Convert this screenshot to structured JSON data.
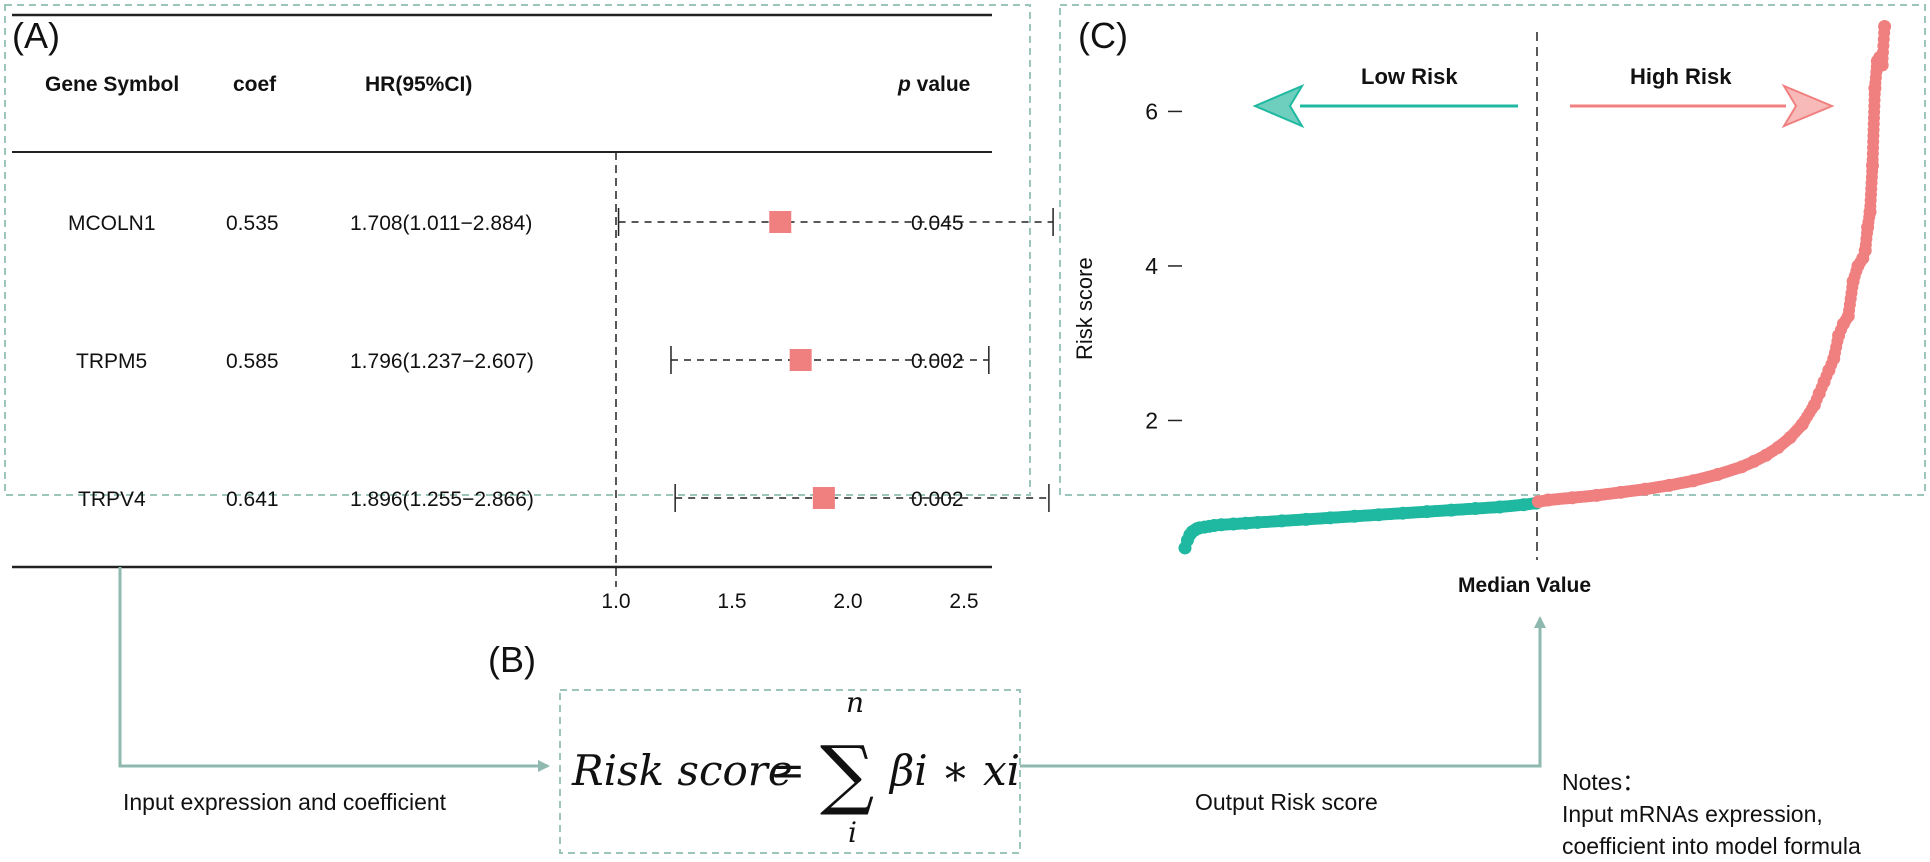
{
  "panel_a": {
    "label": "(A)",
    "headers": {
      "gene": "Gene Symbol",
      "coef": "coef",
      "hr": "HR(95%CI)",
      "p_prefix": "p",
      "p_suffix": " value"
    },
    "rows": [
      {
        "gene": "MCOLN1",
        "coef": "0.535",
        "hr_text": "1.708(1.011−2.884)",
        "p": "0.045",
        "hr": 1.708,
        "lo": 1.011,
        "hi": 2.884
      },
      {
        "gene": "TRPM5",
        "coef": "0.585",
        "hr_text": "1.796(1.237−2.607)",
        "p": "0.002",
        "hr": 1.796,
        "lo": 1.237,
        "hi": 2.607
      },
      {
        "gene": "TRPV4",
        "coef": "0.641",
        "hr_text": "1.896(1.255−2.866)",
        "p": "0.002",
        "hr": 1.896,
        "lo": 1.255,
        "hi": 2.866
      }
    ],
    "axis_ticks": [
      "1.0",
      "1.5",
      "2.0",
      "2.5"
    ],
    "axis_values": [
      1.0,
      1.5,
      2.0,
      2.5
    ],
    "reference_value": 1.0,
    "marker_color": "#f08080"
  },
  "panel_b": {
    "label": "(B)",
    "formula": {
      "lhs": "Risk score",
      "eq": "=",
      "sum": "∑",
      "upper": "n",
      "lower": "i",
      "rhs": "βi ∗ xi"
    },
    "input_label": "Input expression and coefficient",
    "output_label": "Output Risk score",
    "notes": [
      "Notes：",
      "Input mRNAs expression,",
      "coefficient into model formula"
    ]
  },
  "panel_c": {
    "label": "(C)",
    "low_risk": "Low Risk",
    "high_risk": "High Risk",
    "median_label": "Median Value",
    "y_label": "Risk score",
    "y_ticks": [
      "2",
      "4",
      "6"
    ],
    "y_tick_values": [
      2,
      4,
      6
    ],
    "low_color": "#1fb8a0",
    "high_color": "#f08080",
    "arrow_color": "#8fb8ae"
  },
  "chart_data": {
    "type": "scatter",
    "title": "",
    "xlabel": "",
    "ylabel": "Risk score",
    "ylim": [
      0.0,
      7.3
    ],
    "xlim": [
      0,
      290
    ],
    "median_index": 145,
    "series": [
      {
        "name": "Low Risk",
        "color": "#1fb8a0",
        "x": [
          0,
          1,
          2,
          3,
          4,
          5,
          6,
          8,
          10,
          12,
          15,
          20,
          25,
          30,
          40,
          50,
          60,
          70,
          80,
          90,
          100,
          110,
          120,
          130,
          140,
          145
        ],
        "y": [
          0.35,
          0.45,
          0.52,
          0.56,
          0.58,
          0.6,
          0.61,
          0.62,
          0.63,
          0.64,
          0.65,
          0.66,
          0.67,
          0.68,
          0.7,
          0.72,
          0.74,
          0.76,
          0.78,
          0.8,
          0.82,
          0.84,
          0.86,
          0.88,
          0.91,
          0.93
        ]
      },
      {
        "name": "High Risk",
        "color": "#f08080",
        "x": [
          146,
          150,
          160,
          170,
          180,
          190,
          200,
          210,
          220,
          230,
          235,
          240,
          245,
          250,
          255,
          260,
          262,
          264,
          266,
          268,
          270,
          272,
          274,
          276,
          278,
          280,
          281,
          282,
          283,
          284,
          285,
          286,
          287,
          288,
          289
        ],
        "y": [
          0.95,
          0.97,
          1.0,
          1.03,
          1.07,
          1.11,
          1.16,
          1.22,
          1.3,
          1.4,
          1.47,
          1.55,
          1.65,
          1.78,
          1.95,
          2.2,
          2.35,
          2.5,
          2.65,
          2.8,
          3.1,
          3.25,
          3.35,
          3.8,
          4.0,
          4.1,
          4.2,
          4.5,
          4.7,
          5.3,
          6.3,
          6.65,
          6.7,
          6.6,
          7.1
        ]
      }
    ]
  }
}
